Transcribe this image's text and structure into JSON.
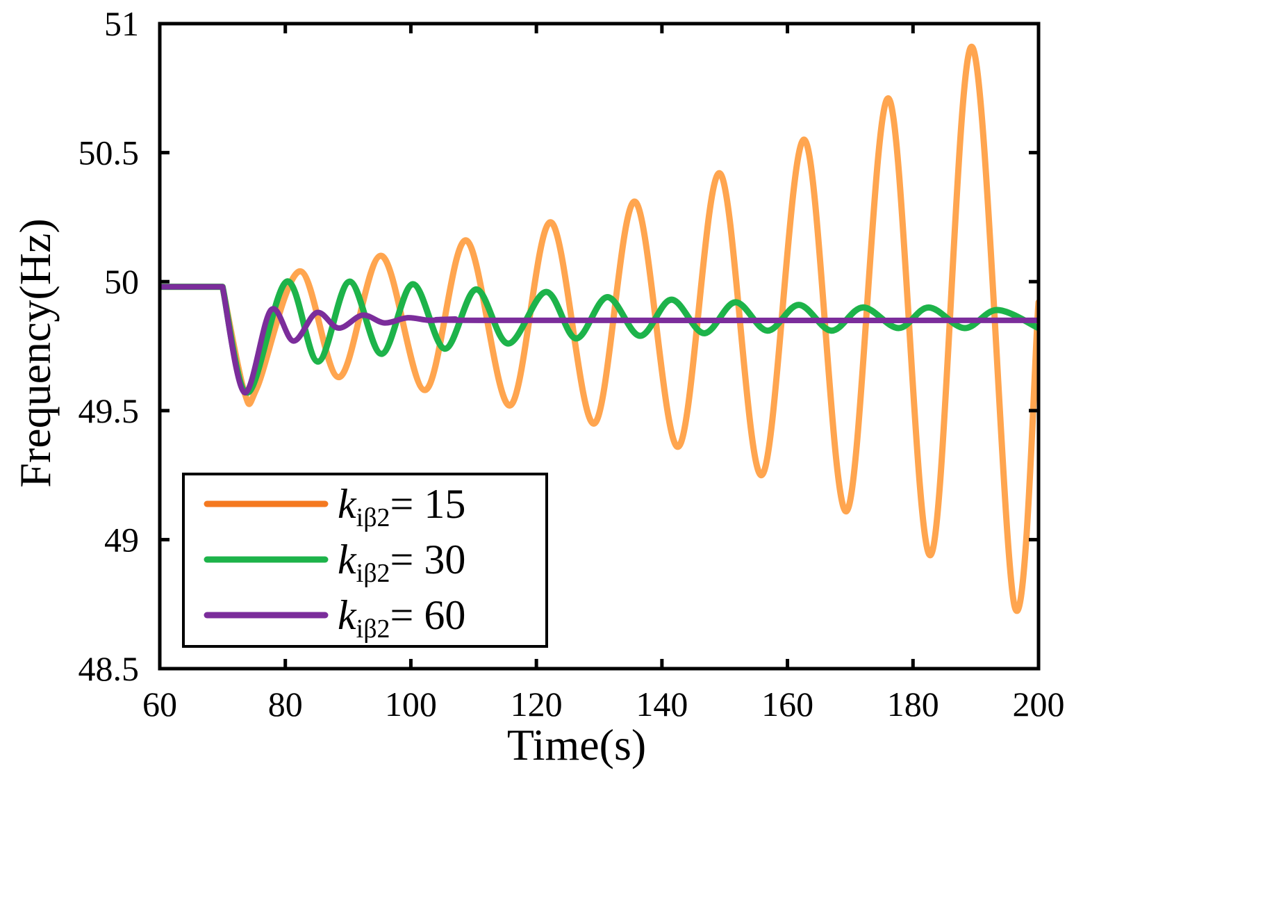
{
  "chart_data": {
    "type": "line",
    "title": "",
    "xlabel": "Time(s)",
    "ylabel": "Frequency(Hz)",
    "xlim": [
      60,
      200
    ],
    "ylim": [
      48.5,
      51
    ],
    "xticks": [
      60,
      80,
      100,
      120,
      140,
      160,
      180,
      200
    ],
    "yticks": [
      48.5,
      49,
      49.5,
      50,
      50.5,
      51
    ],
    "xtick_labels": [
      "60",
      "80",
      "100",
      "120",
      "140",
      "160",
      "180",
      "200"
    ],
    "ytick_labels": [
      "48.5",
      "49",
      "49.5",
      "50",
      "50.5",
      "51"
    ],
    "grid": false,
    "legend_position": "bottom-left",
    "series": [
      {
        "name": "k_iβ2 = 15",
        "label_italic": "k",
        "label_sub": "iβ2",
        "label_value": "= 15",
        "color": "#FFA54F",
        "legend_color": "#F47920",
        "line_width": 9,
        "points": [
          [
            60,
            49.98
          ],
          [
            70,
            49.98
          ],
          [
            73.5,
            49.57
          ],
          [
            75.5,
            49.59
          ],
          [
            82.3,
            50.04
          ],
          [
            88.6,
            49.63
          ],
          [
            95.3,
            50.1
          ],
          [
            102.3,
            49.58
          ],
          [
            108.8,
            50.16
          ],
          [
            115.8,
            49.52
          ],
          [
            122.3,
            50.23
          ],
          [
            129.2,
            49.45
          ],
          [
            135.7,
            50.31
          ],
          [
            142.6,
            49.36
          ],
          [
            149.2,
            50.42
          ],
          [
            155.9,
            49.25
          ],
          [
            162.7,
            50.55
          ],
          [
            169.4,
            49.11
          ],
          [
            176.1,
            50.71
          ],
          [
            182.8,
            48.94
          ],
          [
            189.4,
            50.91
          ],
          [
            196.2,
            48.74
          ],
          [
            200,
            49.92
          ]
        ]
      },
      {
        "name": "k_iβ2 = 30",
        "label_italic": "k",
        "label_sub": "iβ2",
        "label_value": "= 30",
        "color": "#1DB34A",
        "legend_color": "#1DB34A",
        "line_width": 9,
        "points": [
          [
            60,
            49.98
          ],
          [
            70,
            49.98
          ],
          [
            74,
            49.57
          ],
          [
            80.2,
            50.0
          ],
          [
            85.2,
            49.69
          ],
          [
            90.2,
            50.0
          ],
          [
            95.3,
            49.72
          ],
          [
            100.3,
            49.99
          ],
          [
            105.4,
            49.74
          ],
          [
            110.4,
            49.97
          ],
          [
            115.5,
            49.76
          ],
          [
            121.5,
            49.96
          ],
          [
            126.3,
            49.78
          ],
          [
            131.3,
            49.94
          ],
          [
            136.5,
            49.79
          ],
          [
            141.5,
            49.93
          ],
          [
            146.7,
            49.8
          ],
          [
            151.7,
            49.92
          ],
          [
            156.8,
            49.81
          ],
          [
            161.8,
            49.91
          ],
          [
            167,
            49.81
          ],
          [
            172,
            49.9
          ],
          [
            177.7,
            49.82
          ],
          [
            182.5,
            49.9
          ],
          [
            188.2,
            49.82
          ],
          [
            193.4,
            49.89
          ],
          [
            200,
            49.82
          ]
        ]
      },
      {
        "name": "k_iβ2 = 60",
        "label_italic": "k",
        "label_sub": "iβ2",
        "label_value": "= 60",
        "color": "#7B2D9B",
        "legend_color": "#7B2D9B",
        "line_width": 8,
        "points": [
          [
            60,
            49.98
          ],
          [
            70,
            49.98
          ],
          [
            73.5,
            49.57
          ],
          [
            77.7,
            49.89
          ],
          [
            81.3,
            49.77
          ],
          [
            85,
            49.88
          ],
          [
            88.5,
            49.82
          ],
          [
            92.3,
            49.87
          ],
          [
            95.8,
            49.84
          ],
          [
            99.5,
            49.86
          ],
          [
            103,
            49.85
          ],
          [
            107,
            49.855
          ],
          [
            112,
            49.85
          ],
          [
            200,
            49.85
          ]
        ]
      }
    ]
  }
}
